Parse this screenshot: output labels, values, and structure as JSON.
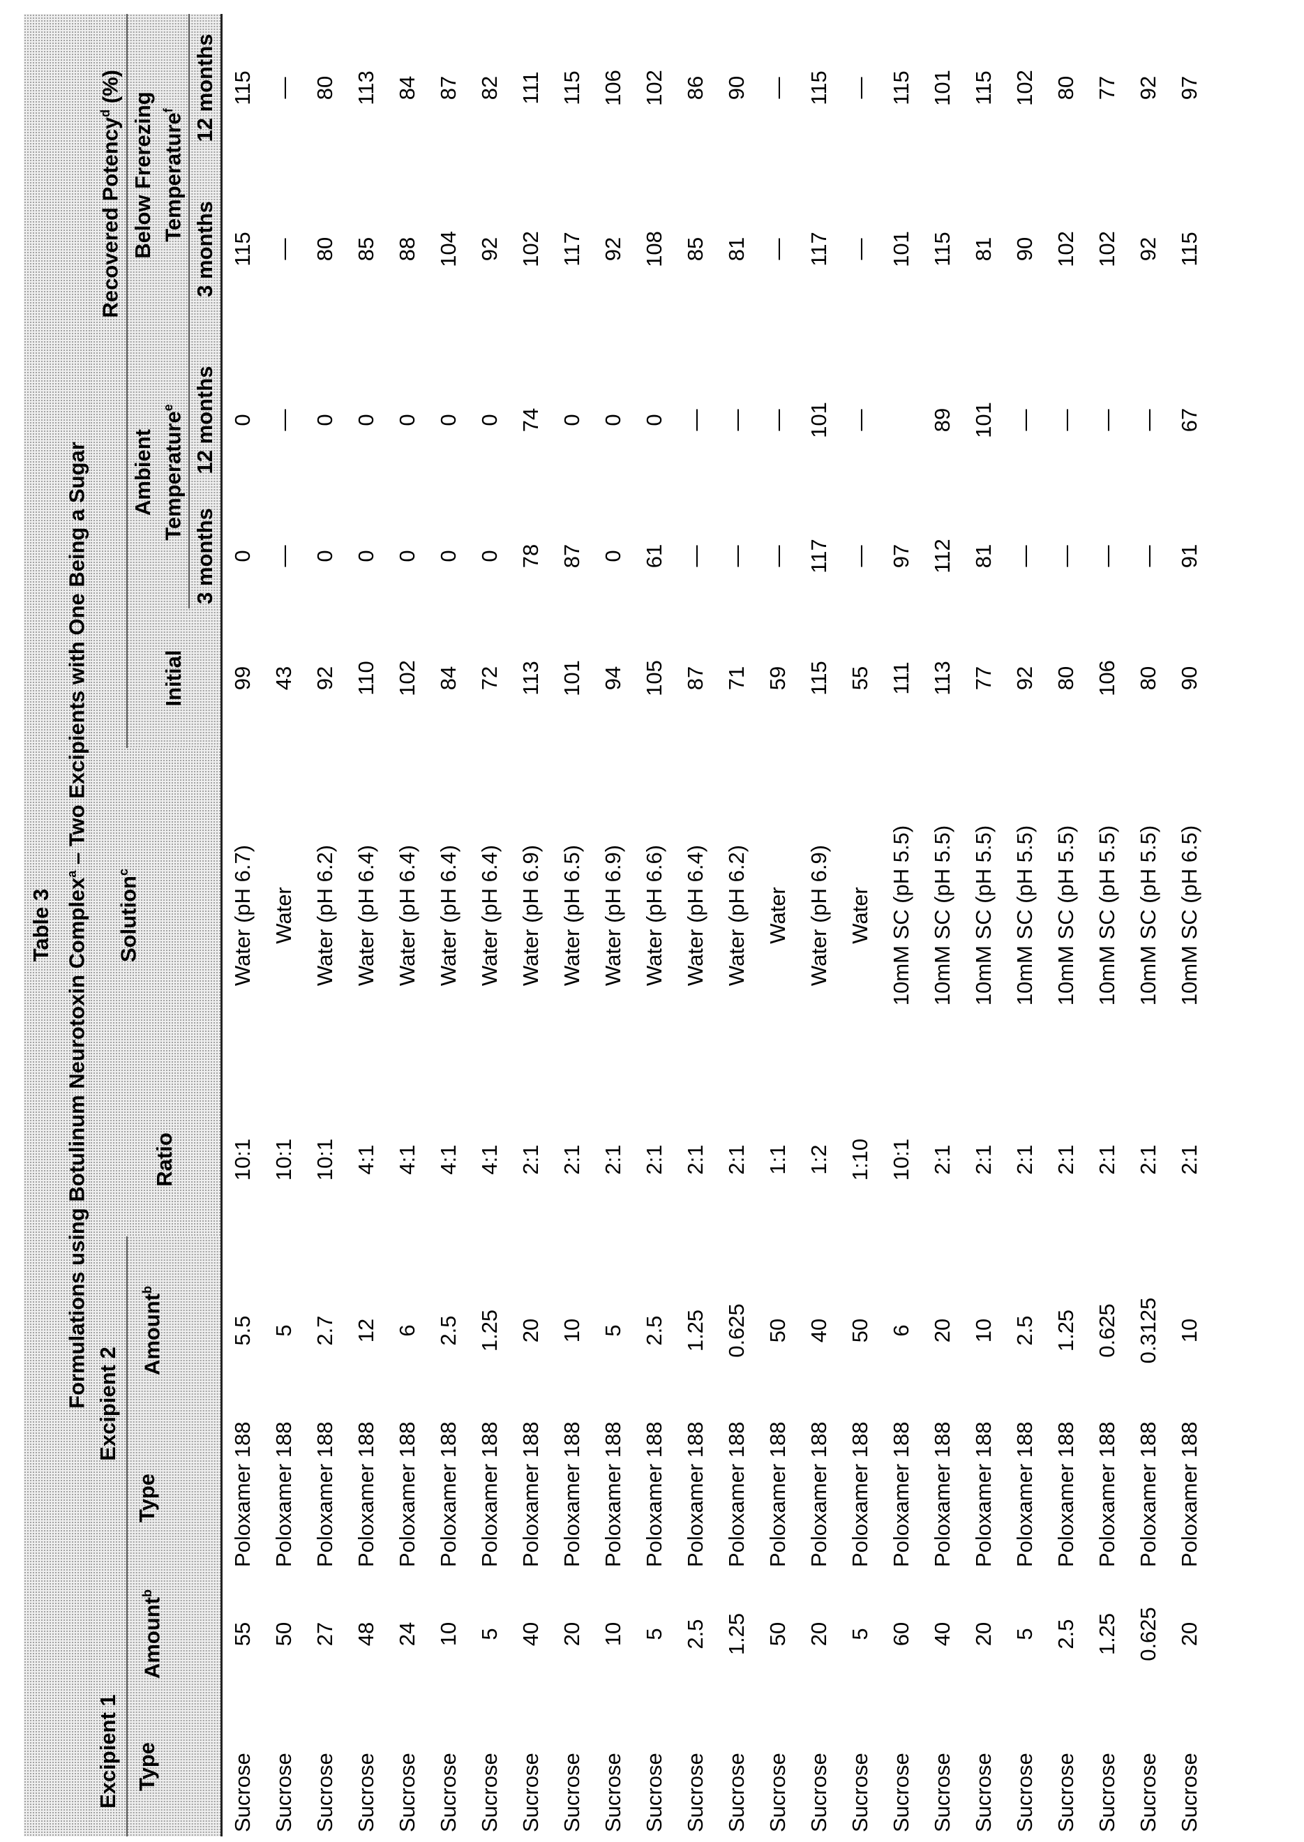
{
  "table": {
    "label": "Table 3",
    "title": {
      "text": "Formulations using Botulinum Neurotoxin Complex",
      "sup": "a",
      "after": " – Two Excipients with One Being a Sugar"
    },
    "groups": {
      "excipient1": "Excipient 1",
      "excipient2": "Excipient 2",
      "potency": {
        "text": "Recovered Potency",
        "sup": "d",
        "after": " (%)"
      },
      "ambient": {
        "lines": [
          "Ambient",
          "Temperature"
        ],
        "sup": "e"
      },
      "below": {
        "lines": [
          "Below Frerezing",
          "Temperature"
        ],
        "sup": "f"
      }
    },
    "columns": [
      {
        "text": "Type"
      },
      {
        "text": "Amount",
        "sup": "b"
      },
      {
        "text": "Type"
      },
      {
        "text": "Amount",
        "sup": "b"
      },
      {
        "text": "Ratio"
      },
      {
        "text": "Solution",
        "sup": "c"
      },
      {
        "text": "Initial"
      },
      {
        "text": "3 months"
      },
      {
        "text": "12 months"
      },
      {
        "text": "3 months"
      },
      {
        "text": "12 months"
      }
    ],
    "rows": [
      [
        "Sucrose",
        55,
        "Poloxamer 188",
        5.5,
        "10:1",
        "Water (pH 6.7)",
        99,
        0,
        0,
        115,
        115
      ],
      [
        "Sucrose",
        50,
        "Poloxamer 188",
        5,
        "10:1",
        "Water",
        43,
        "—",
        "—",
        "—",
        "—"
      ],
      [
        "Sucrose",
        27,
        "Poloxamer 188",
        2.7,
        "10:1",
        "Water (pH 6.2)",
        92,
        0,
        0,
        80,
        80
      ],
      [
        "Sucrose",
        48,
        "Poloxamer 188",
        12,
        "4:1",
        "Water (pH 6.4)",
        110,
        0,
        0,
        85,
        113
      ],
      [
        "Sucrose",
        24,
        "Poloxamer 188",
        6,
        "4:1",
        "Water (pH 6.4)",
        102,
        0,
        0,
        88,
        84
      ],
      [
        "Sucrose",
        10,
        "Poloxamer 188",
        2.5,
        "4:1",
        "Water (pH 6.4)",
        84,
        0,
        0,
        104,
        87
      ],
      [
        "Sucrose",
        5,
        "Poloxamer 188",
        1.25,
        "4:1",
        "Water (pH 6.4)",
        72,
        0,
        0,
        92,
        82
      ],
      [
        "Sucrose",
        40,
        "Poloxamer 188",
        20,
        "2:1",
        "Water (pH 6.9)",
        113,
        78,
        74,
        102,
        111
      ],
      [
        "Sucrose",
        20,
        "Poloxamer 188",
        10,
        "2:1",
        "Water (pH 6.5)",
        101,
        87,
        0,
        117,
        115
      ],
      [
        "Sucrose",
        10,
        "Poloxamer 188",
        5,
        "2:1",
        "Water (pH 6.9)",
        94,
        0,
        0,
        92,
        106
      ],
      [
        "Sucrose",
        5,
        "Poloxamer 188",
        2.5,
        "2:1",
        "Water (pH 6.6)",
        105,
        61,
        0,
        108,
        102
      ],
      [
        "Sucrose",
        2.5,
        "Poloxamer 188",
        1.25,
        "2:1",
        "Water (pH 6.4)",
        87,
        "—",
        "—",
        85,
        86
      ],
      [
        "Sucrose",
        1.25,
        "Poloxamer 188",
        0.625,
        "2:1",
        "Water (pH 6.2)",
        71,
        "—",
        "—",
        81,
        90
      ],
      [
        "Sucrose",
        50,
        "Poloxamer 188",
        50,
        "1:1",
        "Water",
        59,
        "—",
        "—",
        "—",
        "—"
      ],
      [
        "Sucrose",
        20,
        "Poloxamer 188",
        40,
        "1:2",
        "Water (pH 6.9)",
        115,
        117,
        101,
        117,
        115
      ],
      [
        "Sucrose",
        5,
        "Poloxamer 188",
        50,
        "1:10",
        "Water",
        55,
        "—",
        "—",
        "—",
        "—"
      ],
      [
        "Sucrose",
        60,
        "Poloxamer 188",
        6,
        "10:1",
        "10mM SC (pH 5.5)",
        111,
        97,
        null,
        101,
        115
      ],
      [
        "Sucrose",
        40,
        "Poloxamer 188",
        20,
        "2:1",
        "10mM SC (pH 5.5)",
        113,
        112,
        89,
        115,
        101
      ],
      [
        "Sucrose",
        20,
        "Poloxamer 188",
        10,
        "2:1",
        "10mM SC (pH 5.5)",
        77,
        81,
        101,
        81,
        115
      ],
      [
        "Sucrose",
        5,
        "Poloxamer 188",
        2.5,
        "2:1",
        "10mM SC (pH 5.5)",
        92,
        "—",
        "—",
        90,
        102
      ],
      [
        "Sucrose",
        2.5,
        "Poloxamer 188",
        1.25,
        "2:1",
        "10mM SC (pH 5.5)",
        80,
        "—",
        "—",
        102,
        80
      ],
      [
        "Sucrose",
        1.25,
        "Poloxamer 188",
        0.625,
        "2:1",
        "10mM SC (pH 5.5)",
        106,
        "—",
        "—",
        102,
        77
      ],
      [
        "Sucrose",
        0.625,
        "Poloxamer 188",
        0.3125,
        "2:1",
        "10mM SC (pH 5.5)",
        80,
        "—",
        "—",
        92,
        92
      ],
      [
        "Sucrose",
        20,
        "Poloxamer 188",
        10,
        "2:1",
        "10mM SC (pH 6.5)",
        90,
        91,
        67,
        115,
        97
      ]
    ]
  }
}
